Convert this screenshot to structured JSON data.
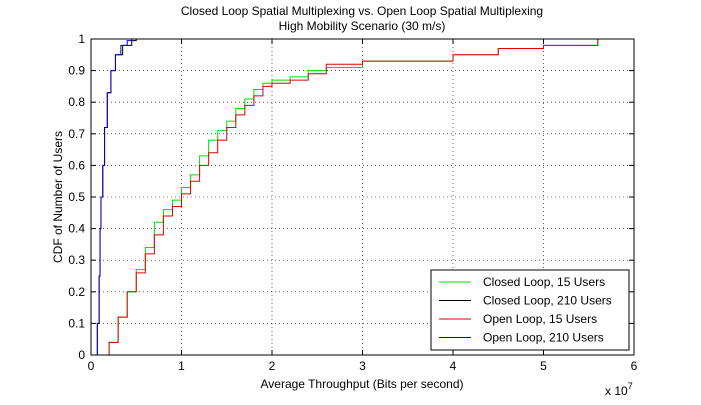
{
  "chart_data": {
    "type": "line",
    "title": "Closed Loop Spatial Multiplexing vs. Open Loop Spatial Multiplexing",
    "subtitle": "High Mobility Scenario (30 m/s)",
    "xlabel": "Average Throughput (Bits per second)",
    "ylabel": "CDF of Number of Users",
    "x_multiplier": "x 10",
    "x_multiplier_exponent": "7",
    "xlim": [
      0,
      6
    ],
    "ylim": [
      0,
      1
    ],
    "x_ticks": [
      "0",
      "1",
      "2",
      "3",
      "4",
      "5",
      "6"
    ],
    "y_ticks": [
      "0",
      "0.1",
      "0.2",
      "0.3",
      "0.4",
      "0.5",
      "0.6",
      "0.7",
      "0.8",
      "0.9",
      "1"
    ],
    "grid": true,
    "legend_position": "bottom-right",
    "series": [
      {
        "name": "Closed Loop, 15 Users",
        "color": "#00dd00",
        "x": [
          0.15,
          0.2,
          0.3,
          0.4,
          0.5,
          0.6,
          0.7,
          0.8,
          0.9,
          1.0,
          1.1,
          1.2,
          1.3,
          1.4,
          1.5,
          1.6,
          1.7,
          1.8,
          1.9,
          2.0,
          2.2,
          2.4,
          2.6,
          3.0,
          4.0,
          4.5,
          5.0,
          5.6
        ],
        "y": [
          0.0,
          0.04,
          0.12,
          0.2,
          0.27,
          0.34,
          0.42,
          0.46,
          0.49,
          0.53,
          0.57,
          0.63,
          0.68,
          0.71,
          0.74,
          0.78,
          0.81,
          0.84,
          0.86,
          0.87,
          0.88,
          0.9,
          0.91,
          0.93,
          0.95,
          0.97,
          0.98,
          1.0
        ]
      },
      {
        "name": "Closed Loop, 210 Users",
        "color": "#000000",
        "x": [
          0.05,
          0.07,
          0.09,
          0.1,
          0.11,
          0.13,
          0.15,
          0.18,
          0.22,
          0.27,
          0.35,
          0.45,
          0.5
        ],
        "y": [
          0.0,
          0.1,
          0.25,
          0.4,
          0.5,
          0.6,
          0.72,
          0.83,
          0.9,
          0.95,
          0.98,
          0.995,
          1.0
        ]
      },
      {
        "name": "Open Loop, 15 Users",
        "color": "#dd0000",
        "x": [
          0.15,
          0.2,
          0.3,
          0.4,
          0.5,
          0.6,
          0.7,
          0.8,
          0.9,
          1.0,
          1.1,
          1.2,
          1.3,
          1.4,
          1.5,
          1.6,
          1.7,
          1.8,
          1.9,
          2.0,
          2.2,
          2.4,
          2.6,
          3.0,
          4.0,
          4.5,
          5.0,
          5.6
        ],
        "y": [
          0.0,
          0.04,
          0.12,
          0.2,
          0.26,
          0.32,
          0.38,
          0.44,
          0.47,
          0.51,
          0.55,
          0.6,
          0.64,
          0.68,
          0.72,
          0.76,
          0.79,
          0.82,
          0.85,
          0.86,
          0.87,
          0.89,
          0.92,
          0.93,
          0.95,
          0.97,
          0.98,
          1.0
        ]
      },
      {
        "name": "Open Loop, 210 Users",
        "color": "#0000cc",
        "x": [
          0.05,
          0.07,
          0.09,
          0.1,
          0.11,
          0.13,
          0.15,
          0.18,
          0.22,
          0.27,
          0.33,
          0.4,
          0.45
        ],
        "y": [
          0.0,
          0.1,
          0.25,
          0.4,
          0.5,
          0.6,
          0.72,
          0.83,
          0.9,
          0.95,
          0.98,
          0.995,
          1.0
        ]
      }
    ]
  }
}
